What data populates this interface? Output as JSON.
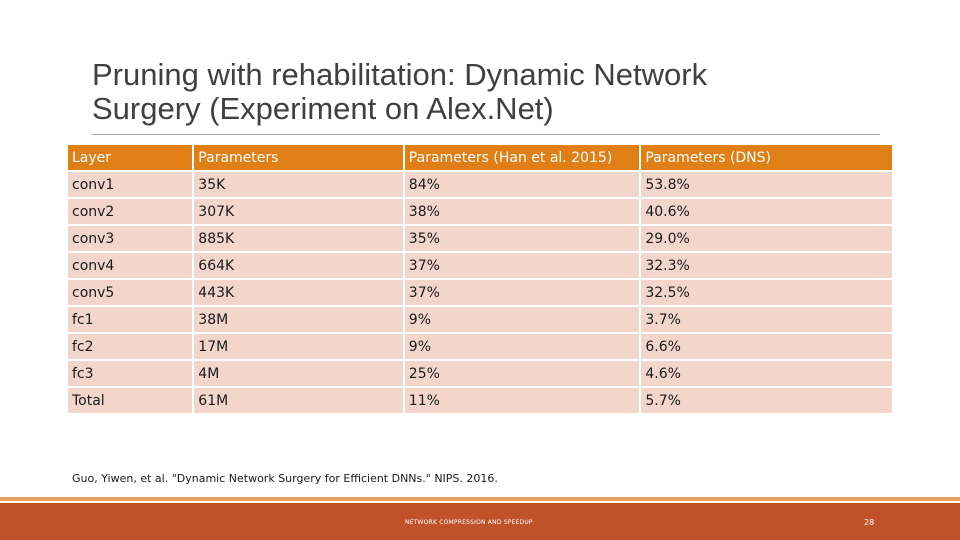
{
  "slide": {
    "title_line1": "Pruning with rehabilitation: Dynamic Network",
    "title_line2": "Surgery (Experiment on Alex.Net)",
    "citation": "Guo, Yiwen, et al. \"Dynamic Network Surgery for Efficient DNNs.\" NIPS. 2016.",
    "footer": "NETWORK COMPRESSION AND SPEEDUP",
    "page_number": "28"
  },
  "table": {
    "headers": [
      "Layer",
      "Parameters",
      "Parameters (Han et al. 2015)",
      "Parameters (DNS)"
    ],
    "rows": [
      [
        "conv1",
        "35K",
        "84%",
        "53.8%"
      ],
      [
        "conv2",
        "307K",
        "38%",
        "40.6%"
      ],
      [
        "conv3",
        "885K",
        "35%",
        "29.0%"
      ],
      [
        "conv4",
        "664K",
        "37%",
        "32.3%"
      ],
      [
        "conv5",
        "443K",
        "37%",
        "32.5%"
      ],
      [
        "fc1",
        "38M",
        "9%",
        "3.7%"
      ],
      [
        "fc2",
        "17M",
        "9%",
        "6.6%"
      ],
      [
        "fc3",
        "4M",
        "25%",
        "4.6%"
      ],
      [
        "Total",
        "61M",
        "11%",
        "5.7%"
      ]
    ]
  },
  "colors": {
    "header_bg": "#e07f16",
    "row_bg": "#f3d6cb",
    "footer_bar": "#c0522a",
    "footer_thin": "#e9a25d"
  }
}
